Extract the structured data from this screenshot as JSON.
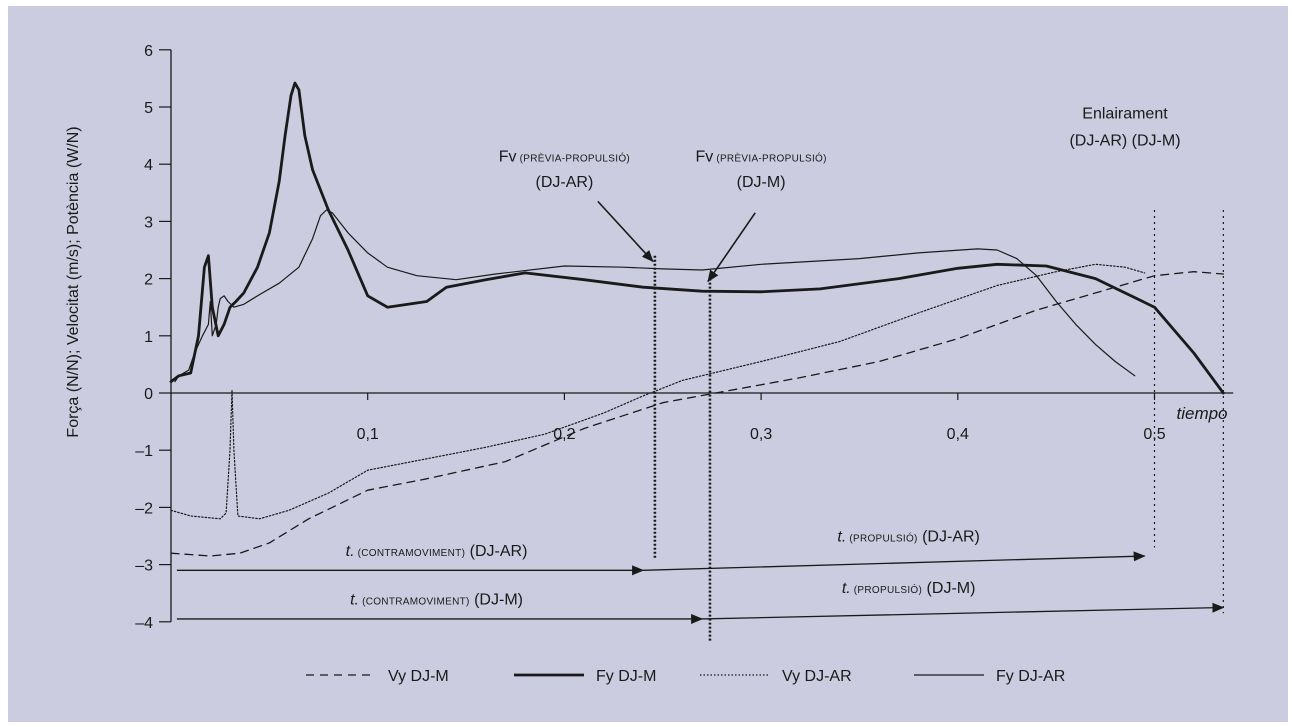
{
  "colors": {
    "background": "#cbccdf",
    "ink": "#1a1a1a"
  },
  "chart_data": {
    "type": "line",
    "title": "",
    "ylabel": "Força (N/N); Velocitat (m/s); Potència (W/N)",
    "xlabel": "tiempo",
    "xlim": [
      0,
      0.54
    ],
    "ylim": [
      -4,
      6
    ],
    "grid": false,
    "legend_position": "bottom",
    "y_ticks": [
      "6",
      "5",
      "4",
      "3",
      "2",
      "1",
      "0",
      "–1",
      "–2",
      "–3",
      "–4"
    ],
    "y_tick_values": [
      6,
      5,
      4,
      3,
      2,
      1,
      0,
      -1,
      -2,
      -3,
      -4
    ],
    "x_ticks": [
      "0,1",
      "0,2",
      "0,3",
      "0,4",
      "0,5"
    ],
    "x_tick_values": [
      0.1,
      0.2,
      0.3,
      0.4,
      0.5
    ],
    "series": [
      {
        "name": "Vy DJ-M",
        "style": "dashed",
        "points": [
          [
            0,
            -2.8
          ],
          [
            0.02,
            -2.85
          ],
          [
            0.035,
            -2.8
          ],
          [
            0.05,
            -2.62
          ],
          [
            0.07,
            -2.2
          ],
          [
            0.1,
            -1.7
          ],
          [
            0.13,
            -1.5
          ],
          [
            0.17,
            -1.2
          ],
          [
            0.21,
            -0.62
          ],
          [
            0.25,
            -0.17
          ],
          [
            0.28,
            0.02
          ],
          [
            0.32,
            0.27
          ],
          [
            0.36,
            0.55
          ],
          [
            0.4,
            0.95
          ],
          [
            0.44,
            1.45
          ],
          [
            0.48,
            1.85
          ],
          [
            0.5,
            2.05
          ],
          [
            0.52,
            2.12
          ],
          [
            0.535,
            2.08
          ]
        ]
      },
      {
        "name": "Fy DJ-M",
        "style": "thick",
        "points": [
          [
            0,
            0.2
          ],
          [
            0.004,
            0.3
          ],
          [
            0.01,
            0.35
          ],
          [
            0.014,
            1.0
          ],
          [
            0.017,
            2.2
          ],
          [
            0.019,
            2.4
          ],
          [
            0.021,
            1.5
          ],
          [
            0.024,
            1.0
          ],
          [
            0.027,
            1.2
          ],
          [
            0.03,
            1.5
          ],
          [
            0.033,
            1.6
          ],
          [
            0.037,
            1.75
          ],
          [
            0.044,
            2.2
          ],
          [
            0.05,
            2.8
          ],
          [
            0.055,
            3.7
          ],
          [
            0.058,
            4.5
          ],
          [
            0.061,
            5.2
          ],
          [
            0.063,
            5.42
          ],
          [
            0.065,
            5.3
          ],
          [
            0.068,
            4.5
          ],
          [
            0.072,
            3.9
          ],
          [
            0.08,
            3.2
          ],
          [
            0.09,
            2.5
          ],
          [
            0.1,
            1.7
          ],
          [
            0.11,
            1.5
          ],
          [
            0.13,
            1.6
          ],
          [
            0.14,
            1.85
          ],
          [
            0.16,
            1.98
          ],
          [
            0.18,
            2.1
          ],
          [
            0.21,
            1.98
          ],
          [
            0.24,
            1.85
          ],
          [
            0.27,
            1.78
          ],
          [
            0.3,
            1.77
          ],
          [
            0.33,
            1.82
          ],
          [
            0.37,
            2.0
          ],
          [
            0.4,
            2.18
          ],
          [
            0.42,
            2.25
          ],
          [
            0.445,
            2.22
          ],
          [
            0.47,
            2.0
          ],
          [
            0.5,
            1.5
          ],
          [
            0.52,
            0.7
          ],
          [
            0.535,
            0.0
          ]
        ]
      },
      {
        "name": "Vy DJ-AR",
        "style": "dotted",
        "points": [
          [
            0,
            -2.05
          ],
          [
            0.01,
            -2.15
          ],
          [
            0.025,
            -2.2
          ],
          [
            0.028,
            -2.1
          ],
          [
            0.03,
            -1.0
          ],
          [
            0.031,
            0.05
          ],
          [
            0.032,
            -1.0
          ],
          [
            0.034,
            -2.15
          ],
          [
            0.045,
            -2.2
          ],
          [
            0.06,
            -2.05
          ],
          [
            0.08,
            -1.75
          ],
          [
            0.1,
            -1.35
          ],
          [
            0.13,
            -1.15
          ],
          [
            0.16,
            -0.95
          ],
          [
            0.19,
            -0.72
          ],
          [
            0.22,
            -0.35
          ],
          [
            0.24,
            -0.05
          ],
          [
            0.26,
            0.22
          ],
          [
            0.3,
            0.55
          ],
          [
            0.34,
            0.9
          ],
          [
            0.38,
            1.4
          ],
          [
            0.42,
            1.88
          ],
          [
            0.45,
            2.12
          ],
          [
            0.47,
            2.25
          ],
          [
            0.485,
            2.2
          ],
          [
            0.495,
            2.1
          ]
        ]
      },
      {
        "name": "Fy DJ-AR",
        "style": "thin",
        "points": [
          [
            0.002,
            0.2
          ],
          [
            0.004,
            0.3
          ],
          [
            0.009,
            0.4
          ],
          [
            0.012,
            0.7
          ],
          [
            0.016,
            1.0
          ],
          [
            0.019,
            1.2
          ],
          [
            0.02,
            1.6
          ],
          [
            0.021,
            1.0
          ],
          [
            0.023,
            1.2
          ],
          [
            0.024,
            1.5
          ],
          [
            0.025,
            1.65
          ],
          [
            0.027,
            1.7
          ],
          [
            0.029,
            1.6
          ],
          [
            0.032,
            1.5
          ],
          [
            0.037,
            1.55
          ],
          [
            0.045,
            1.72
          ],
          [
            0.055,
            1.92
          ],
          [
            0.065,
            2.2
          ],
          [
            0.072,
            2.7
          ],
          [
            0.076,
            3.1
          ],
          [
            0.079,
            3.2
          ],
          [
            0.082,
            3.15
          ],
          [
            0.09,
            2.8
          ],
          [
            0.1,
            2.45
          ],
          [
            0.11,
            2.2
          ],
          [
            0.125,
            2.05
          ],
          [
            0.145,
            1.98
          ],
          [
            0.165,
            2.08
          ],
          [
            0.2,
            2.22
          ],
          [
            0.23,
            2.2
          ],
          [
            0.25,
            2.17
          ],
          [
            0.27,
            2.15
          ],
          [
            0.3,
            2.25
          ],
          [
            0.35,
            2.35
          ],
          [
            0.38,
            2.45
          ],
          [
            0.41,
            2.52
          ],
          [
            0.42,
            2.5
          ],
          [
            0.43,
            2.35
          ],
          [
            0.44,
            2.05
          ],
          [
            0.45,
            1.6
          ],
          [
            0.46,
            1.2
          ],
          [
            0.47,
            0.85
          ],
          [
            0.48,
            0.55
          ],
          [
            0.49,
            0.3
          ]
        ]
      }
    ],
    "vertical_markers": [
      {
        "x": 0.246,
        "y_from": 2.4,
        "y_to": -2.9,
        "style": "dotted-thick"
      },
      {
        "x": 0.274,
        "y_from": 2.0,
        "y_to": -4.35,
        "style": "dotted-thick"
      },
      {
        "x": 0.5,
        "y_from": 3.2,
        "y_to": -2.7,
        "style": "dotted"
      },
      {
        "x": 0.535,
        "y_from": 3.2,
        "y_to": -3.85,
        "style": "dotted"
      }
    ],
    "phase_arrows": [
      {
        "from": [
          0.003,
          -3.1
        ],
        "to": [
          0.24,
          -3.1
        ]
      },
      {
        "from": [
          0.24,
          -3.1
        ],
        "to": [
          0.495,
          -2.85
        ]
      },
      {
        "from": [
          0.003,
          -3.95
        ],
        "to": [
          0.27,
          -3.95
        ]
      },
      {
        "from": [
          0.27,
          -3.95
        ],
        "to": [
          0.535,
          -3.75
        ]
      }
    ],
    "pointer_arrows": [
      {
        "from": [
          0.217,
          3.35
        ],
        "to": [
          0.245,
          2.3
        ]
      },
      {
        "from": [
          0.297,
          3.15
        ],
        "to": [
          0.273,
          1.95
        ]
      }
    ],
    "annotations": [
      {
        "id": "fv_ar",
        "parts": [
          {
            "t": "Fv",
            "cls": "ann"
          },
          {
            "t": " (PRÈVIA-PROPULSIÓ)",
            "cls": "small"
          }
        ],
        "line2": "(DJ-AR)",
        "x": 0.2,
        "y": 4.05,
        "y2": 3.6
      },
      {
        "id": "fv_m",
        "parts": [
          {
            "t": "Fv",
            "cls": "ann"
          },
          {
            "t": " (PRÈVIA-PROPULSIÓ)",
            "cls": "small"
          }
        ],
        "line2": "(DJ-M)",
        "x": 0.3,
        "y": 4.05,
        "y2": 3.6
      },
      {
        "id": "enlairament",
        "parts": [
          {
            "t": "Enlairament",
            "cls": "ann"
          }
        ],
        "line2": "(DJ-AR) (DJ-M)",
        "x": 0.485,
        "y": 4.8,
        "y2": 4.33
      },
      {
        "id": "tc_ar",
        "parts": [
          {
            "t": "t.",
            "cls": "ann ital"
          },
          {
            "t": " (CONTRAMOVIMENT)",
            "cls": "small"
          },
          {
            "t": " (DJ-AR)",
            "cls": "ann"
          }
        ],
        "x": 0.135,
        "y": -2.85
      },
      {
        "id": "tp_ar",
        "parts": [
          {
            "t": "t.",
            "cls": "ann ital"
          },
          {
            "t": " (PROPULSIÓ)",
            "cls": "small"
          },
          {
            "t": " (DJ-AR)",
            "cls": "ann"
          }
        ],
        "x": 0.375,
        "y": -2.6
      },
      {
        "id": "tc_m",
        "parts": [
          {
            "t": "t.",
            "cls": "ann ital"
          },
          {
            "t": " (CONTRAMOVIMENT)",
            "cls": "small"
          },
          {
            "t": " (DJ-M)",
            "cls": "ann"
          }
        ],
        "x": 0.135,
        "y": -3.7
      },
      {
        "id": "tp_m",
        "parts": [
          {
            "t": "t.",
            "cls": "ann ital"
          },
          {
            "t": " (PROPULSIÓ)",
            "cls": "small"
          },
          {
            "t": " (DJ-M)",
            "cls": "ann"
          }
        ],
        "x": 0.375,
        "y": -3.5
      }
    ]
  }
}
